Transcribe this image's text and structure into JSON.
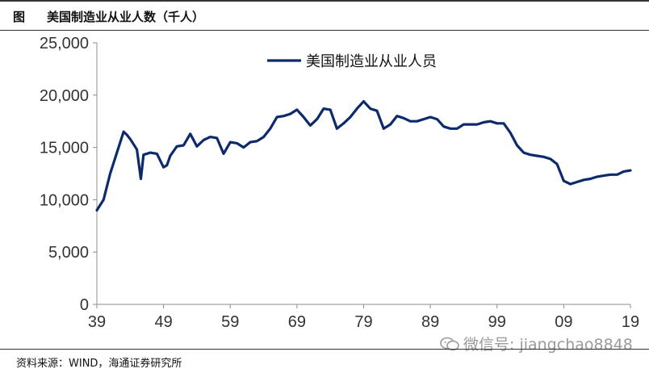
{
  "header": {
    "fig_label": "图",
    "title": "美国制造业从业人数（千人）"
  },
  "footer": {
    "source": "资料来源：WIND，海通证券研究所",
    "watermark": "微信号: jiangchao8848"
  },
  "colors": {
    "series": "#0d2a6b",
    "axis": "#8c8c8c",
    "text": "#333333"
  },
  "chart_data": {
    "type": "line",
    "title": "",
    "xlabel": "",
    "ylabel": "",
    "xlim": [
      1939,
      2019
    ],
    "ylim": [
      0,
      25000
    ],
    "x_ticks": [
      1939,
      1949,
      1959,
      1969,
      1979,
      1989,
      1999,
      2009,
      2019
    ],
    "x_tick_labels": [
      "39",
      "49",
      "59",
      "69",
      "79",
      "89",
      "99",
      "09",
      "19"
    ],
    "y_ticks": [
      0,
      5000,
      10000,
      15000,
      20000,
      25000
    ],
    "y_tick_labels": [
      "0",
      "5,000",
      "10,000",
      "15,000",
      "20,000",
      "25,000"
    ],
    "grid": false,
    "legend_position": "top-center",
    "series": [
      {
        "name": "美国制造业从业人员",
        "x": [
          1939,
          1940,
          1941,
          1942,
          1943,
          1943.5,
          1944,
          1945,
          1945.6,
          1946,
          1947,
          1948,
          1949,
          1949.5,
          1950,
          1951,
          1952,
          1953,
          1954,
          1955,
          1956,
          1957,
          1958,
          1959,
          1960,
          1961,
          1962,
          1963,
          1964,
          1965,
          1966,
          1967,
          1968,
          1969,
          1970,
          1971,
          1972,
          1973,
          1974,
          1975,
          1976,
          1977,
          1978,
          1979,
          1980,
          1981,
          1982,
          1983,
          1984,
          1985,
          1986,
          1987,
          1988,
          1989,
          1990,
          1991,
          1992,
          1993,
          1994,
          1995,
          1996,
          1997,
          1998,
          1999,
          2000,
          2001,
          2002,
          2003,
          2004,
          2005,
          2006,
          2007,
          2008,
          2009,
          2010,
          2011,
          2012,
          2013,
          2014,
          2015,
          2016,
          2017,
          2018,
          2019
        ],
        "y": [
          9000,
          10000,
          12500,
          14500,
          16500,
          16200,
          15800,
          14800,
          12000,
          14300,
          14500,
          14400,
          13100,
          13300,
          14200,
          15100,
          15200,
          16300,
          15100,
          15700,
          16000,
          15900,
          14400,
          15500,
          15400,
          15000,
          15500,
          15600,
          16000,
          16800,
          17900,
          18000,
          18200,
          18600,
          17900,
          17100,
          17700,
          18700,
          18600,
          16800,
          17300,
          17900,
          18700,
          19400,
          18700,
          18500,
          16800,
          17200,
          18000,
          17800,
          17500,
          17500,
          17700,
          17900,
          17700,
          17000,
          16800,
          16800,
          17200,
          17200,
          17200,
          17400,
          17500,
          17300,
          17300,
          16400,
          15200,
          14500,
          14300,
          14200,
          14100,
          13900,
          13400,
          11800,
          11500,
          11700,
          11900,
          12000,
          12200,
          12300,
          12400,
          12400,
          12700,
          12800
        ]
      }
    ]
  }
}
